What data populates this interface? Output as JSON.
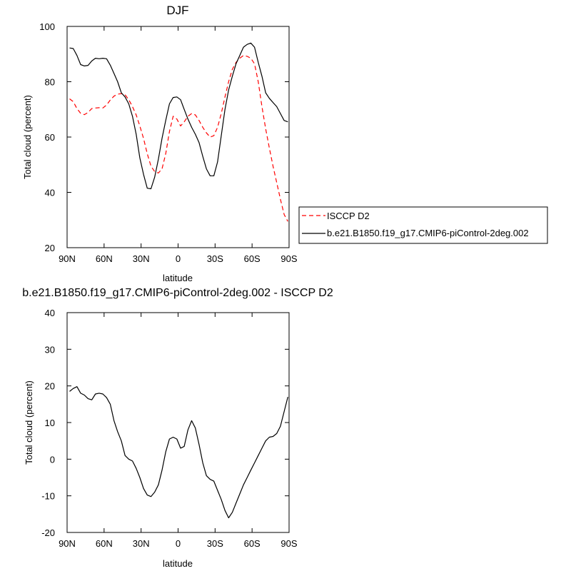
{
  "chart_data": [
    {
      "type": "line",
      "title": "DJF",
      "xlabel": "latitude",
      "ylabel": "Total cloud (percent)",
      "xlim": [
        -90,
        90
      ],
      "ylim": [
        20,
        100
      ],
      "xticks": [
        -90,
        -60,
        -30,
        0,
        30,
        60,
        90
      ],
      "xtick_labels": [
        "90N",
        "60N",
        "30N",
        "0",
        "30S",
        "60S",
        "90S"
      ],
      "yticks": [
        20,
        40,
        60,
        80,
        100
      ],
      "ytick_labels": [
        "20",
        "40",
        "60",
        "80",
        "100"
      ],
      "legend_position": "right",
      "series": [
        {
          "name": "ISCCP D2",
          "color": "#ff0000",
          "dash": "dashed",
          "x": [
            -88,
            -85,
            -82,
            -79,
            -76,
            -73,
            -70,
            -67,
            -64,
            -61,
            -58,
            -55,
            -52,
            -49,
            -46,
            -43,
            -40,
            -37,
            -34,
            -31,
            -28,
            -25,
            -22,
            -19,
            -16,
            -13,
            -10,
            -7,
            -4,
            -1,
            2,
            5,
            8,
            11,
            14,
            17,
            20,
            23,
            26,
            29,
            32,
            35,
            38,
            41,
            44,
            47,
            50,
            53,
            56,
            59,
            62,
            65,
            68,
            71,
            74,
            77,
            80,
            83,
            86,
            89
          ],
          "y": [
            73.8,
            72.8,
            70.3,
            68.6,
            68.1,
            68.9,
            70.3,
            70.5,
            70.6,
            70.5,
            71.6,
            73.4,
            74.8,
            75.5,
            75.7,
            75.3,
            73.5,
            71.0,
            68.0,
            64.0,
            59.5,
            54.0,
            49.5,
            47.5,
            47.0,
            48.5,
            54.0,
            62.0,
            67.5,
            66.5,
            64.0,
            65.5,
            67.5,
            68.5,
            68.0,
            66.0,
            63.5,
            61.5,
            60.0,
            60.5,
            63.5,
            68.5,
            74.5,
            80.0,
            84.5,
            87.0,
            88.5,
            89.5,
            89.2,
            88.5,
            86.5,
            80.0,
            71.0,
            63.0,
            56.0,
            49.5,
            43.5,
            37.5,
            32.0,
            29.5
          ]
        },
        {
          "name": "b.e21.B1850.f19_g17.CMIP6-piControl-2deg.002",
          "color": "#000000",
          "dash": "solid",
          "x": [
            -88,
            -85,
            -82,
            -79,
            -76,
            -73,
            -70,
            -67,
            -64,
            -61,
            -58,
            -55,
            -52,
            -49,
            -46,
            -43,
            -40,
            -37,
            -34,
            -31,
            -28,
            -25,
            -22,
            -19,
            -16,
            -13,
            -10,
            -7,
            -4,
            -1,
            2,
            5,
            8,
            11,
            14,
            17,
            20,
            23,
            26,
            29,
            32,
            35,
            38,
            41,
            44,
            47,
            50,
            53,
            56,
            59,
            62,
            65,
            68,
            71,
            74,
            77,
            80,
            83,
            86,
            89
          ],
          "y": [
            92.2,
            92.0,
            89.5,
            86.2,
            85.7,
            85.9,
            87.5,
            88.5,
            88.3,
            88.5,
            88.3,
            86.0,
            83.0,
            80.0,
            76.0,
            74.5,
            72.0,
            67.5,
            61.0,
            52.5,
            46.5,
            41.5,
            41.3,
            45.5,
            52.0,
            59.5,
            66.0,
            72.0,
            74.3,
            74.5,
            73.5,
            70.0,
            66.5,
            63.5,
            61.0,
            58.0,
            53.0,
            48.5,
            46.0,
            46.0,
            51.0,
            60.5,
            70.0,
            77.0,
            82.0,
            86.5,
            89.5,
            92.5,
            93.5,
            94.0,
            92.5,
            87.0,
            82.0,
            76.0,
            74.0,
            72.5,
            71.0,
            68.5,
            66.0,
            65.5
          ]
        }
      ]
    },
    {
      "type": "line",
      "title": "b.e21.B1850.f19_g17.CMIP6-piControl-2deg.002 - ISCCP D2",
      "xlabel": "latitude",
      "ylabel": "Total cloud (percent)",
      "xlim": [
        -90,
        90
      ],
      "ylim": [
        -20,
        40
      ],
      "xticks": [
        -90,
        -60,
        -30,
        0,
        30,
        60,
        90
      ],
      "xtick_labels": [
        "90N",
        "60N",
        "30N",
        "0",
        "30S",
        "60S",
        "90S"
      ],
      "yticks": [
        -20,
        -10,
        0,
        10,
        20,
        30,
        40
      ],
      "ytick_labels": [
        "-20",
        "-10",
        "0",
        "10",
        "20",
        "30",
        "40"
      ],
      "series": [
        {
          "color": "#000000",
          "dash": "solid",
          "x": [
            -88,
            -85,
            -82,
            -79,
            -76,
            -73,
            -70,
            -67,
            -64,
            -61,
            -58,
            -55,
            -52,
            -49,
            -46,
            -43,
            -40,
            -37,
            -34,
            -31,
            -28,
            -25,
            -22,
            -19,
            -16,
            -13,
            -10,
            -7,
            -4,
            -1,
            2,
            5,
            8,
            11,
            14,
            17,
            20,
            23,
            26,
            29,
            32,
            35,
            38,
            41,
            44,
            47,
            50,
            53,
            56,
            59,
            62,
            65,
            68,
            71,
            74,
            77,
            80,
            83,
            86,
            89
          ],
          "y": [
            18.5,
            19.3,
            19.8,
            18.0,
            17.5,
            16.5,
            16.2,
            17.8,
            18.0,
            17.8,
            16.8,
            15.0,
            10.5,
            7.5,
            5.0,
            1.0,
            0.0,
            -0.5,
            -2.5,
            -5.0,
            -8.0,
            -9.8,
            -10.2,
            -9.0,
            -7.0,
            -3.0,
            2.0,
            5.5,
            6.0,
            5.5,
            3.0,
            3.5,
            8.0,
            10.5,
            8.5,
            4.0,
            -1.0,
            -4.5,
            -5.5,
            -6.0,
            -8.5,
            -11.0,
            -14.0,
            -16.0,
            -14.5,
            -12.0,
            -9.5,
            -7.0,
            -5.0,
            -3.0,
            -1.0,
            1.0,
            3.0,
            5.0,
            6.0,
            6.2,
            7.0,
            9.0,
            13.0,
            17.0
          ]
        }
      ]
    }
  ]
}
